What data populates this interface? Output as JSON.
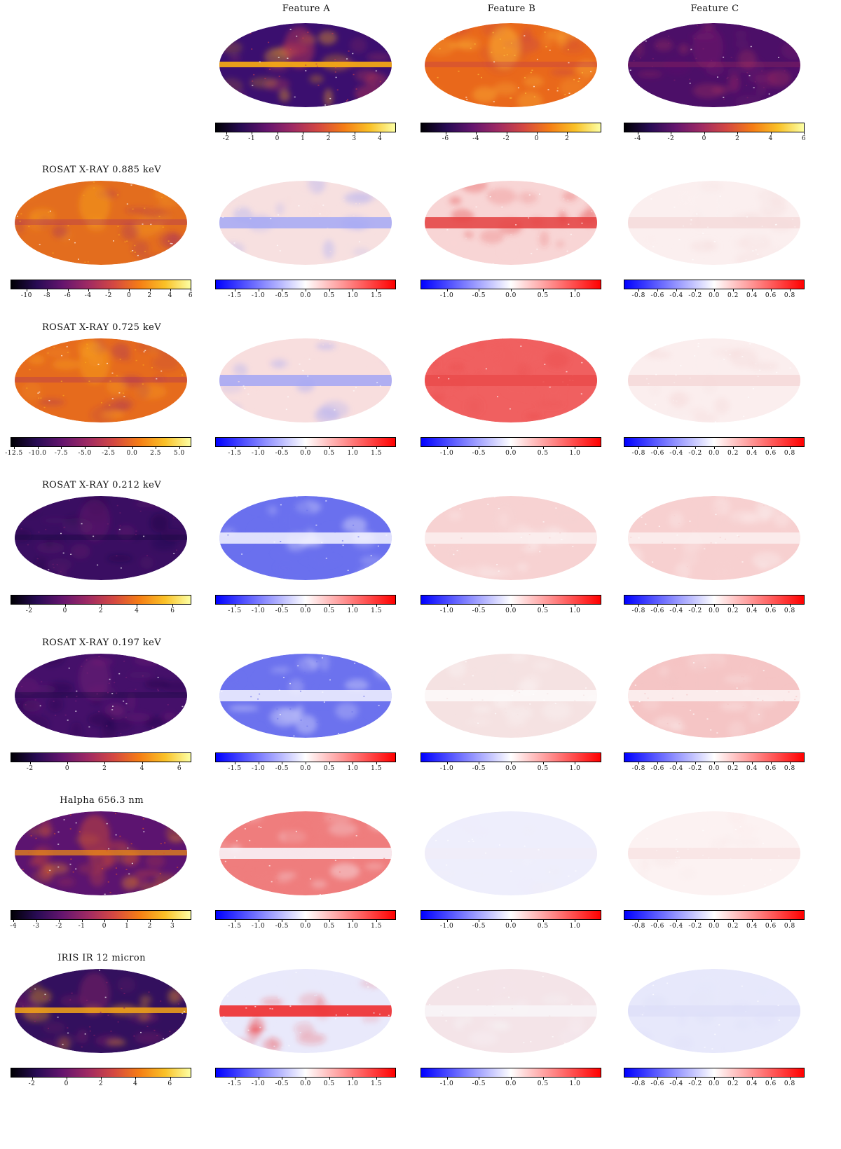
{
  "chart_data": {
    "type": "heatmap",
    "description_grid": "rows = input maps, columns = features",
    "columns": [
      {
        "title": "Feature A",
        "colorbar": {
          "colormap": "inferno",
          "min": -2.4,
          "max": 4.6,
          "ticks": [
            -2,
            -1,
            0,
            1,
            2,
            3,
            4
          ]
        }
      },
      {
        "title": "Feature B",
        "colorbar": {
          "colormap": "inferno",
          "min": -7.6,
          "max": 4.2,
          "ticks": [
            -6,
            -4,
            -2,
            0,
            2
          ]
        }
      },
      {
        "title": "Feature C",
        "colorbar": {
          "colormap": "inferno",
          "min": -4.8,
          "max": 6.0,
          "ticks": [
            -4,
            -2,
            0,
            2,
            4,
            6
          ]
        }
      }
    ],
    "rows": [
      {
        "title": "ROSAT X-RAY 0.885 keV",
        "input_colorbar": {
          "colormap": "inferno",
          "min": -11.5,
          "max": 6.0,
          "ticks": [
            "-10",
            "-8",
            "-6",
            "-4",
            "-2",
            "0",
            "2",
            "4",
            "6"
          ]
        },
        "diff_colorbars": [
          {
            "colormap": "bwr",
            "min": -1.9,
            "max": 1.9,
            "ticks": [
              "-1.5",
              "-1.0",
              "-0.5",
              "0.0",
              "0.5",
              "1.0",
              "1.5"
            ]
          },
          {
            "colormap": "bwr",
            "min": -1.4,
            "max": 1.4,
            "ticks": [
              "-1.0",
              "-0.5",
              "0.0",
              "0.5",
              "1.0"
            ]
          },
          {
            "colormap": "bwr",
            "min": -0.95,
            "max": 0.95,
            "ticks": [
              "-0.8",
              "-0.6",
              "-0.4",
              "-0.2",
              "0.0",
              "0.2",
              "0.4",
              "0.6",
              "0.8"
            ]
          }
        ]
      },
      {
        "title": "ROSAT X-RAY 0.725 keV",
        "input_colorbar": {
          "colormap": "inferno",
          "min": -12.8,
          "max": 6.2,
          "ticks": [
            "-12.5",
            "-10.0",
            "-7.5",
            "-5.0",
            "-2.5",
            "0.0",
            "2.5",
            "5.0"
          ]
        },
        "diff_colorbars": [
          {
            "colormap": "bwr",
            "min": -1.9,
            "max": 1.9,
            "ticks": [
              "-1.5",
              "-1.0",
              "-0.5",
              "0.0",
              "0.5",
              "1.0",
              "1.5"
            ]
          },
          {
            "colormap": "bwr",
            "min": -1.4,
            "max": 1.4,
            "ticks": [
              "-1.0",
              "-0.5",
              "0.0",
              "0.5",
              "1.0"
            ]
          },
          {
            "colormap": "bwr",
            "min": -0.95,
            "max": 0.95,
            "ticks": [
              "-0.8",
              "-0.6",
              "-0.4",
              "-0.2",
              "0.0",
              "0.2",
              "0.4",
              "0.6",
              "0.8"
            ]
          }
        ]
      },
      {
        "title": "ROSAT X-RAY 0.212 keV",
        "input_colorbar": {
          "colormap": "inferno",
          "min": -3.0,
          "max": 7.0,
          "ticks": [
            "-2",
            "0",
            "2",
            "4",
            "6"
          ]
        },
        "diff_colorbars": [
          {
            "colormap": "bwr",
            "min": -1.9,
            "max": 1.9,
            "ticks": [
              "-1.5",
              "-1.0",
              "-0.5",
              "0.0",
              "0.5",
              "1.0",
              "1.5"
            ]
          },
          {
            "colormap": "bwr",
            "min": -1.4,
            "max": 1.4,
            "ticks": [
              "-1.0",
              "-0.5",
              "0.0",
              "0.5",
              "1.0"
            ]
          },
          {
            "colormap": "bwr",
            "min": -0.95,
            "max": 0.95,
            "ticks": [
              "-0.8",
              "-0.6",
              "-0.4",
              "-0.2",
              "0.0",
              "0.2",
              "0.4",
              "0.6",
              "0.8"
            ]
          }
        ]
      },
      {
        "title": "ROSAT X-RAY 0.197 keV",
        "input_colorbar": {
          "colormap": "inferno",
          "min": -3.0,
          "max": 6.6,
          "ticks": [
            "-2",
            "0",
            "2",
            "4",
            "6"
          ]
        },
        "diff_colorbars": [
          {
            "colormap": "bwr",
            "min": -1.9,
            "max": 1.9,
            "ticks": [
              "-1.5",
              "-1.0",
              "-0.5",
              "0.0",
              "0.5",
              "1.0",
              "1.5"
            ]
          },
          {
            "colormap": "bwr",
            "min": -1.4,
            "max": 1.4,
            "ticks": [
              "-1.0",
              "-0.5",
              "0.0",
              "0.5",
              "1.0"
            ]
          },
          {
            "colormap": "bwr",
            "min": -0.95,
            "max": 0.95,
            "ticks": [
              "-0.8",
              "-0.6",
              "-0.4",
              "-0.2",
              "0.0",
              "0.2",
              "0.4",
              "0.6",
              "0.8"
            ]
          }
        ]
      },
      {
        "title": "Halpha 656.3 nm",
        "input_colorbar": {
          "colormap": "inferno",
          "min": -4.1,
          "max": 3.8,
          "ticks": [
            "-4",
            "-3",
            "-2",
            "-1",
            "0",
            "1",
            "2",
            "3"
          ]
        },
        "diff_colorbars": [
          {
            "colormap": "bwr",
            "min": -1.9,
            "max": 1.9,
            "ticks": [
              "-1.5",
              "-1.0",
              "-0.5",
              "0.0",
              "0.5",
              "1.0",
              "1.5"
            ]
          },
          {
            "colormap": "bwr",
            "min": -1.4,
            "max": 1.4,
            "ticks": [
              "-1.0",
              "-0.5",
              "0.0",
              "0.5",
              "1.0"
            ]
          },
          {
            "colormap": "bwr",
            "min": -0.95,
            "max": 0.95,
            "ticks": [
              "-0.8",
              "-0.6",
              "-0.4",
              "-0.2",
              "0.0",
              "0.2",
              "0.4",
              "0.6",
              "0.8"
            ]
          }
        ]
      },
      {
        "title": "IRIS IR 12 micron",
        "input_colorbar": {
          "colormap": "inferno",
          "min": -3.2,
          "max": 7.2,
          "ticks": [
            "-2",
            "0",
            "2",
            "4",
            "6"
          ]
        },
        "diff_colorbars": [
          {
            "colormap": "bwr",
            "min": -1.9,
            "max": 1.9,
            "ticks": [
              "-1.5",
              "-1.0",
              "-0.5",
              "0.0",
              "0.5",
              "1.0",
              "1.5"
            ]
          },
          {
            "colormap": "bwr",
            "min": -1.4,
            "max": 1.4,
            "ticks": [
              "-1.0",
              "-0.5",
              "0.0",
              "0.5",
              "1.0"
            ]
          },
          {
            "colormap": "bwr",
            "min": -0.95,
            "max": 0.95,
            "ticks": [
              "-0.8",
              "-0.6",
              "-0.4",
              "-0.2",
              "0.0",
              "0.2",
              "0.4",
              "0.6",
              "0.8"
            ]
          }
        ]
      }
    ],
    "feature_map_style": [
      {
        "base": "#3b0f6f",
        "band": "#fcae12",
        "bandStrength": 0.9,
        "bubble": "#c43c4e"
      },
      {
        "base": "#e9681b",
        "band": "#c03a50",
        "bandStrength": 0.35,
        "bubble": "#fcbf3a"
      },
      {
        "base": "#4c0f68",
        "band": "#b33359",
        "bandStrength": 0.25,
        "bubble": "#7a1d6d"
      }
    ],
    "input_map_style": [
      {
        "base": "#e36d1e",
        "band": "#a82e5f",
        "bandStrength": 0.35,
        "bubble": "#f9a51c"
      },
      {
        "base": "#e66b1d",
        "band": "#a82e5f",
        "bandStrength": 0.35,
        "bubble": "#f9a51c"
      },
      {
        "base": "#3a0e62",
        "band": "#1a0b40",
        "bandStrength": 0.4,
        "bubble": "#6c1c6e"
      },
      {
        "base": "#45106a",
        "band": "#1d0b45",
        "bandStrength": 0.4,
        "bubble": "#772076"
      },
      {
        "base": "#5c1470",
        "band": "#f18f13",
        "bandStrength": 0.7,
        "bubble": "#d9502c"
      },
      {
        "base": "#33105e",
        "band": "#f4a516",
        "bandStrength": 0.85,
        "bubble": "#8a2266"
      }
    ],
    "diff_map_style": [
      [
        "#f7e0e0",
        "#f8d5d5",
        "#fbefef"
      ],
      [
        "#f8dede",
        "#f06060",
        "#fbeeee"
      ],
      [
        "#6a70ee",
        "#f7d2d2",
        "#f7d0d0"
      ],
      [
        "#6c72ee",
        "#f5e2e2",
        "#f5c5c5"
      ],
      [
        "#ef7d7d",
        "#eeeefc",
        "#fcf2f2"
      ],
      [
        "#e9e9fb",
        "#f4e4e8",
        "#e7e8fb"
      ]
    ],
    "diff_band_style": [
      [
        "#a5a8f5",
        "#e44040",
        "#f4dada"
      ],
      [
        "#a3a6f4",
        "#ea4b4b",
        "#f4d8d8"
      ],
      [
        "#f3f3ff",
        "#fbf0f0",
        "#fbf0f0"
      ],
      [
        "#f4f4ff",
        "#fdfafa",
        "#fbf2f2"
      ],
      [
        "#f9f9ff",
        "#f0ecf8",
        "#f8e4e4"
      ],
      [
        "#ee2222",
        "#f8f6f8",
        "#dedff8"
      ]
    ]
  }
}
